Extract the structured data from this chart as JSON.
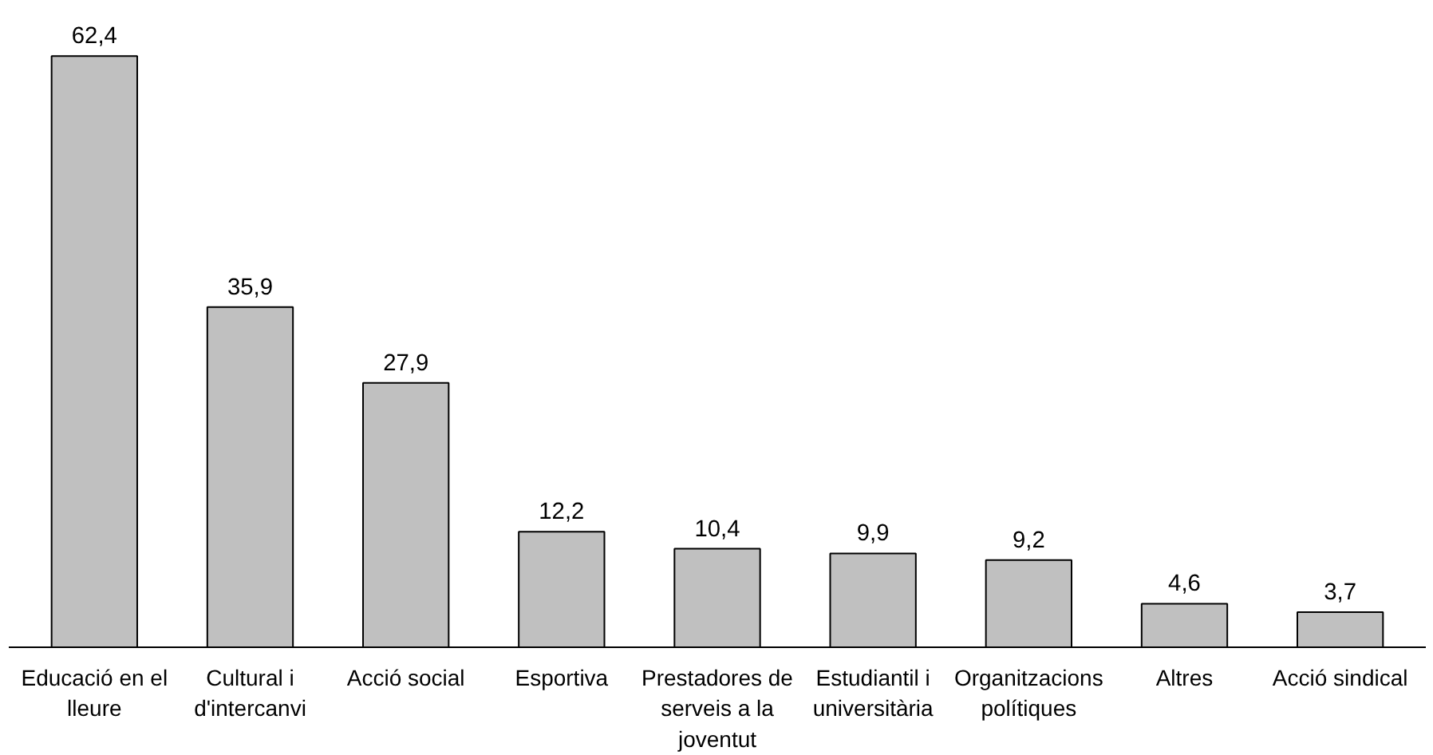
{
  "chart_data": {
    "type": "bar",
    "categories": [
      "Educació en el lleure",
      "Cultural i d'intercanvi",
      "Acció social",
      "Esportiva",
      "Prestadores de serveis a la joventut",
      "Estudiantil i universitària",
      "Organitzacions polítiques",
      "Altres",
      "Acció sindical"
    ],
    "values": [
      62.4,
      35.9,
      27.9,
      12.2,
      10.4,
      9.9,
      9.2,
      4.6,
      3.7
    ],
    "value_labels": [
      "62,4",
      "35,9",
      "27,9",
      "12,2",
      "10,4",
      "9,9",
      "9,2",
      "4,6",
      "3,7"
    ],
    "color": "#c0c0c0",
    "grid": false
  }
}
